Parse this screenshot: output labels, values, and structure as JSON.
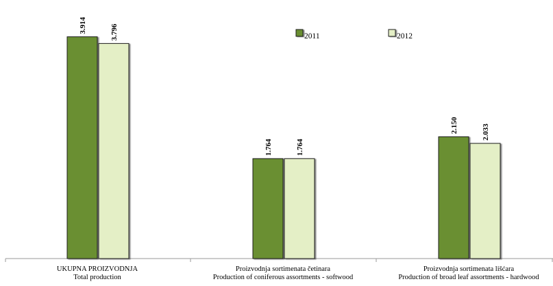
{
  "chart_data": {
    "type": "bar",
    "categories": [
      [
        "UKUPNA PROIZVODNJA",
        "Total production"
      ],
      [
        "Proizvodnja sortimenata četinara",
        "Production of coniferous assortments - softwood"
      ],
      [
        "Proizvodnja sortimenata lišćara",
        "Production of broad leaf assortments - hardwood"
      ]
    ],
    "series": [
      {
        "name": "2011",
        "values": [
          3914,
          1764,
          2150
        ],
        "labels": [
          "3.914",
          "1.764",
          "2.150"
        ],
        "color": "#6a8f32"
      },
      {
        "name": "2012",
        "values": [
          3796,
          1764,
          2033
        ],
        "labels": [
          "3.796",
          "1.764",
          "2.033"
        ],
        "color": "#e4efc6"
      }
    ],
    "ylim": [
      0,
      4200
    ],
    "legend_position": "top-right",
    "grid": false
  }
}
